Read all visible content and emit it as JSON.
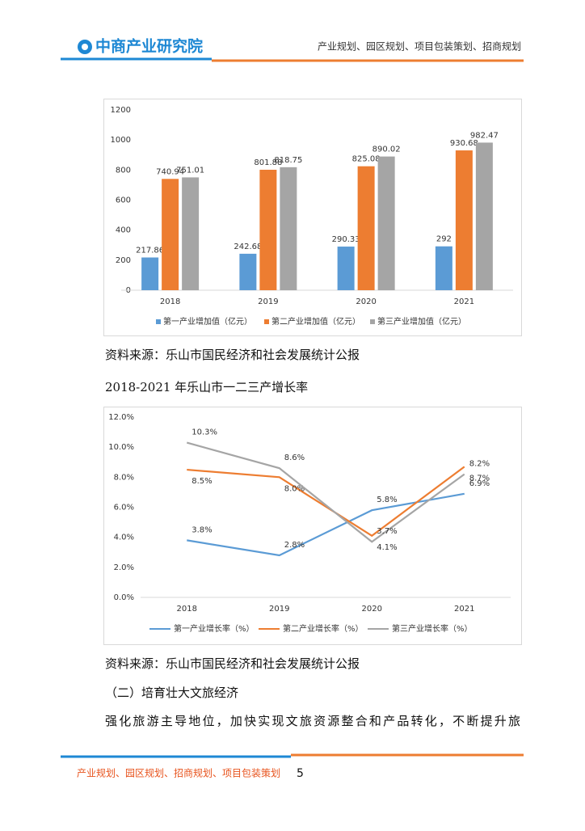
{
  "header": {
    "logo": "中商产业研究院",
    "tagline": "产业规划、园区规划、项目包装策划、招商规划"
  },
  "chart_data": [
    {
      "type": "bar",
      "categories": [
        "2018",
        "2019",
        "2020",
        "2021"
      ],
      "series": [
        {
          "name": "第一产业增加值（亿元）",
          "color": "#5b9bd5",
          "values": [
            217.86,
            242.68,
            290.33,
            292
          ]
        },
        {
          "name": "第二产业增加值（亿元）",
          "color": "#ed7d31",
          "values": [
            740.94,
            801.88,
            825.08,
            930.68
          ]
        },
        {
          "name": "第三产业增加值（亿元）",
          "color": "#a5a5a5",
          "values": [
            751.01,
            818.75,
            890.02,
            982.47
          ]
        }
      ],
      "ylim": [
        0,
        1200
      ],
      "yticks": [
        0,
        200,
        400,
        600,
        800,
        1000,
        1200
      ]
    },
    {
      "type": "line",
      "title": "2018-2021 年乐山市一二三产增长率",
      "categories": [
        "2018",
        "2019",
        "2020",
        "2021"
      ],
      "series": [
        {
          "name": "第一产业增长率（%）",
          "color": "#5b9bd5",
          "values": [
            3.8,
            2.8,
            5.8,
            6.9
          ],
          "value_labels": [
            "3.8%",
            "2.8%",
            "5.8%",
            "6.9%"
          ]
        },
        {
          "name": "第二产业增长率（%）",
          "color": "#ed7d31",
          "values": [
            8.5,
            8.0,
            4.1,
            8.7
          ],
          "value_labels": [
            "8.5%",
            "8.0%",
            "4.1%",
            "8.7%"
          ]
        },
        {
          "name": "第三产业增长率（%）",
          "color": "#a5a5a5",
          "values": [
            10.3,
            8.6,
            3.7,
            8.2
          ],
          "value_labels": [
            "10.3%",
            "8.6%",
            "3.7%",
            "8.2%"
          ]
        }
      ],
      "ylim": [
        0,
        12
      ],
      "yticks": [
        {
          "value": 0,
          "label": "0.0%"
        },
        {
          "value": 2,
          "label": "2.0%"
        },
        {
          "value": 4,
          "label": "4.0%"
        },
        {
          "value": 6,
          "label": "6.0%"
        },
        {
          "value": 8,
          "label": "8.0%"
        },
        {
          "value": 10,
          "label": "10.0%"
        },
        {
          "value": 12,
          "label": "12.0%"
        }
      ]
    }
  ],
  "body": {
    "source_1": "资料来源：乐山市国民经济和社会发展统计公报",
    "source_2": "资料来源：乐山市国民经济和社会发展统计公报",
    "heading": "（二）培育壮大文旅经济",
    "paragraph": "强化旅游主导地位，加快实现文旅资源整合和产品转化，不断提升旅"
  },
  "footer": {
    "text": "产业规划、园区规划、招商规划、项目包装策划",
    "page": 5
  }
}
